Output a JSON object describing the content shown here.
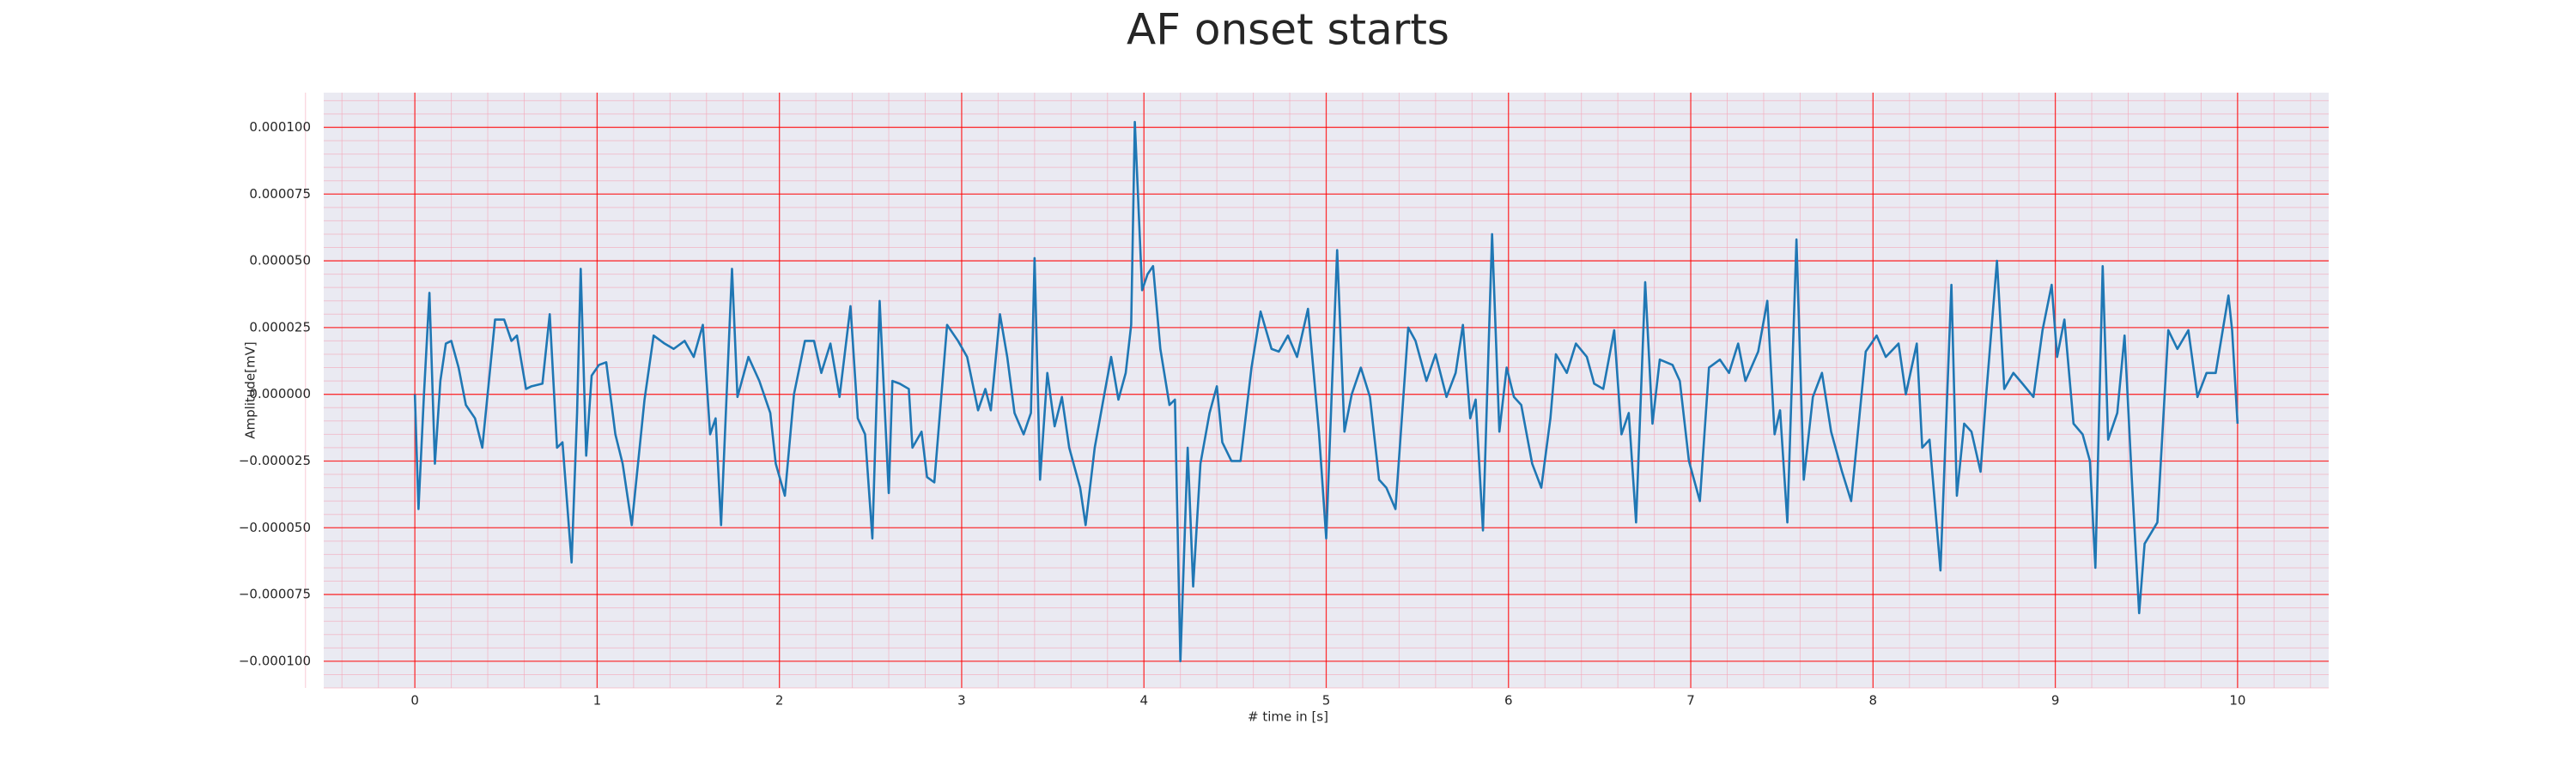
{
  "chart_data": {
    "type": "line",
    "title": "AF onset starts",
    "xlabel": "# time in [s]",
    "ylabel": "Amplitude[mV]",
    "xlim": [
      -0.5,
      10.5
    ],
    "ylim": [
      -0.00011,
      0.000113
    ],
    "xticks": [
      0,
      1,
      2,
      3,
      4,
      5,
      6,
      7,
      8,
      9,
      10
    ],
    "yticks": [
      {
        "value": 0.0001,
        "label": "0.000100"
      },
      {
        "value": 7.5e-05,
        "label": "0.000075"
      },
      {
        "value": 5e-05,
        "label": "0.000050"
      },
      {
        "value": 2.5e-05,
        "label": "0.000025"
      },
      {
        "value": 0,
        "label": "0.000000"
      },
      {
        "value": -2.5e-05,
        "label": "−0.000025"
      },
      {
        "value": -5e-05,
        "label": "−0.000050"
      },
      {
        "value": -7.5e-05,
        "label": "−0.000075"
      },
      {
        "value": -0.0001,
        "label": "−0.000100"
      }
    ],
    "grid": true,
    "grid_color": "#ff0000",
    "minor_grid_color": "#f4a6b8",
    "minor_divisions": 5,
    "background": "#eaeaf2",
    "series": [
      {
        "color": "#1f77b4",
        "x": [
          0,
          0.02,
          0.05,
          0.08,
          0.11,
          0.14,
          0.17,
          0.2,
          0.24,
          0.28,
          0.33,
          0.37,
          0.44,
          0.49,
          0.53,
          0.56,
          0.61,
          0.64,
          0.7,
          0.74,
          0.78,
          0.81,
          0.86,
          0.89,
          0.91,
          0.94,
          0.97,
          1.01,
          1.05,
          1.1,
          1.14,
          1.19,
          1.26,
          1.31,
          1.37,
          1.42,
          1.48,
          1.53,
          1.58,
          1.62,
          1.65,
          1.68,
          1.74,
          1.77,
          1.83,
          1.89,
          1.95,
          1.98,
          2.03,
          2.08,
          2.14,
          2.19,
          2.23,
          2.28,
          2.33,
          2.39,
          2.43,
          2.47,
          2.51,
          2.55,
          2.6,
          2.62,
          2.66,
          2.71,
          2.73,
          2.78,
          2.81,
          2.85,
          2.92,
          2.98,
          3.03,
          3.09,
          3.13,
          3.16,
          3.21,
          3.25,
          3.29,
          3.34,
          3.38,
          3.4,
          3.43,
          3.47,
          3.51,
          3.55,
          3.59,
          3.65,
          3.68,
          3.73,
          3.78,
          3.82,
          3.86,
          3.9,
          3.93,
          3.95,
          3.99,
          4.02,
          4.05,
          4.09,
          4.14,
          4.17,
          4.2,
          4.24,
          4.27,
          4.31,
          4.36,
          4.4,
          4.43,
          4.48,
          4.53,
          4.59,
          4.64,
          4.7,
          4.74,
          4.79,
          4.84,
          4.9,
          4.96,
          5.0,
          5.06,
          5.1,
          5.14,
          5.19,
          5.24,
          5.29,
          5.33,
          5.38,
          5.45,
          5.49,
          5.55,
          5.6,
          5.66,
          5.71,
          5.75,
          5.79,
          5.82,
          5.86,
          5.91,
          5.95,
          5.99,
          6.03,
          6.07,
          6.13,
          6.18,
          6.23,
          6.26,
          6.32,
          6.37,
          6.43,
          6.47,
          6.52,
          6.58,
          6.62,
          6.66,
          6.7,
          6.75,
          6.79,
          6.83,
          6.9,
          6.94,
          6.99,
          7.05,
          7.1,
          7.16,
          7.21,
          7.26,
          7.3,
          7.37,
          7.42,
          7.46,
          7.49,
          7.53,
          7.58,
          7.62,
          7.67,
          7.72,
          7.77,
          7.83,
          7.88,
          7.96,
          8.02,
          8.07,
          8.14,
          8.18,
          8.24,
          8.27,
          8.31,
          8.37,
          8.43,
          8.46,
          8.5,
          8.54,
          8.59,
          8.62,
          8.68,
          8.72,
          8.77,
          8.82,
          8.88,
          8.93,
          8.98,
          9.01,
          9.05,
          9.1,
          9.15,
          9.19,
          9.22,
          9.26,
          9.29,
          9.34,
          9.38,
          9.42,
          9.46,
          9.49,
          9.56,
          9.62,
          9.67,
          9.73,
          9.78,
          9.83,
          9.88,
          9.95,
          9.97,
          10.0
        ],
        "values": [
          0,
          -4.3e-05,
          0,
          3.8e-05,
          -2.6e-05,
          5e-06,
          1.9e-05,
          2e-05,
          1e-05,
          -4e-06,
          -9e-06,
          -2e-05,
          2.8e-05,
          2.8e-05,
          2e-05,
          2.2e-05,
          2e-06,
          3e-06,
          4e-06,
          3e-05,
          -2e-05,
          -1.8e-05,
          -6.3e-05,
          -7e-06,
          4.7e-05,
          -2.3e-05,
          7e-06,
          1.1e-05,
          1.2e-05,
          -1.5e-05,
          -2.6e-05,
          -4.9e-05,
          -2e-06,
          2.2e-05,
          1.9e-05,
          1.7e-05,
          2e-05,
          1.4e-05,
          2.6e-05,
          -1.5e-05,
          -9e-06,
          -4.9e-05,
          4.7e-05,
          -1e-06,
          1.4e-05,
          5e-06,
          -7e-06,
          -2.6e-05,
          -3.8e-05,
          0,
          2e-05,
          2e-05,
          8e-06,
          1.9e-05,
          -1e-06,
          3.3e-05,
          -9e-06,
          -1.5e-05,
          -5.4e-05,
          3.5e-05,
          -3.7e-05,
          5e-06,
          4e-06,
          2e-06,
          -2e-05,
          -1.4e-05,
          -3.1e-05,
          -3.3e-05,
          2.6e-05,
          2e-05,
          1.4e-05,
          -6e-06,
          2e-06,
          -6e-06,
          3e-05,
          1.4e-05,
          -7e-06,
          -1.5e-05,
          -7e-06,
          5.1e-05,
          -3.2e-05,
          8e-06,
          -1.2e-05,
          -1e-06,
          -2e-05,
          -3.5e-05,
          -4.9e-05,
          -2e-05,
          -1e-06,
          1.4e-05,
          -2e-06,
          8e-06,
          2.6e-05,
          0.000102,
          3.9e-05,
          4.5e-05,
          4.8e-05,
          1.7e-05,
          -4e-06,
          -2e-06,
          -0.0001,
          -2e-05,
          -7.2e-05,
          -2.6e-05,
          -7e-06,
          3e-06,
          -1.8e-05,
          -2.5e-05,
          -2.5e-05,
          1e-05,
          3.1e-05,
          1.7e-05,
          1.6e-05,
          2.2e-05,
          1.4e-05,
          3.2e-05,
          -1.4e-05,
          -5.4e-05,
          5.4e-05,
          -1.4e-05,
          0,
          1e-05,
          -1e-06,
          -3.2e-05,
          -3.5e-05,
          -4.3e-05,
          2.5e-05,
          2e-05,
          5e-06,
          1.5e-05,
          -1e-06,
          8e-06,
          2.6e-05,
          -9e-06,
          -2e-06,
          -5.1e-05,
          6e-05,
          -1.4e-05,
          1e-05,
          -1e-06,
          -4e-06,
          -2.6e-05,
          -3.5e-05,
          -9e-06,
          1.5e-05,
          8e-06,
          1.9e-05,
          1.4e-05,
          4e-06,
          2e-06,
          2.4e-05,
          -1.5e-05,
          -7e-06,
          -4.8e-05,
          4.2e-05,
          -1.1e-05,
          1.3e-05,
          1.1e-05,
          5e-06,
          -2.5e-05,
          -4e-05,
          1e-05,
          1.3e-05,
          8e-06,
          1.9e-05,
          5e-06,
          1.6e-05,
          3.5e-05,
          -1.5e-05,
          -6e-06,
          -4.8e-05,
          5.8e-05,
          -3.2e-05,
          -1e-06,
          8e-06,
          -1.4e-05,
          -2.9e-05,
          -4e-05,
          1.6e-05,
          2.2e-05,
          1.4e-05,
          1.9e-05,
          0,
          1.9e-05,
          -2e-05,
          -1.7e-05,
          -6.6e-05,
          4.1e-05,
          -3.8e-05,
          -1.1e-05,
          -1.4e-05,
          -2.9e-05,
          -1e-06,
          5e-05,
          2e-06,
          8e-06,
          4e-06,
          -1e-06,
          2.4e-05,
          4.1e-05,
          1.4e-05,
          2.8e-05,
          -1.1e-05,
          -1.5e-05,
          -2.5e-05,
          -6.5e-05,
          4.8e-05,
          -1.7e-05,
          -7e-06,
          2.2e-05,
          -3.2e-05,
          -8.2e-05,
          -5.6e-05,
          -4.8e-05,
          2.4e-05,
          1.7e-05,
          2.4e-05,
          -1e-06,
          8e-06,
          8e-06,
          3.7e-05,
          2.4e-05,
          -1.1e-05
        ]
      }
    ]
  }
}
